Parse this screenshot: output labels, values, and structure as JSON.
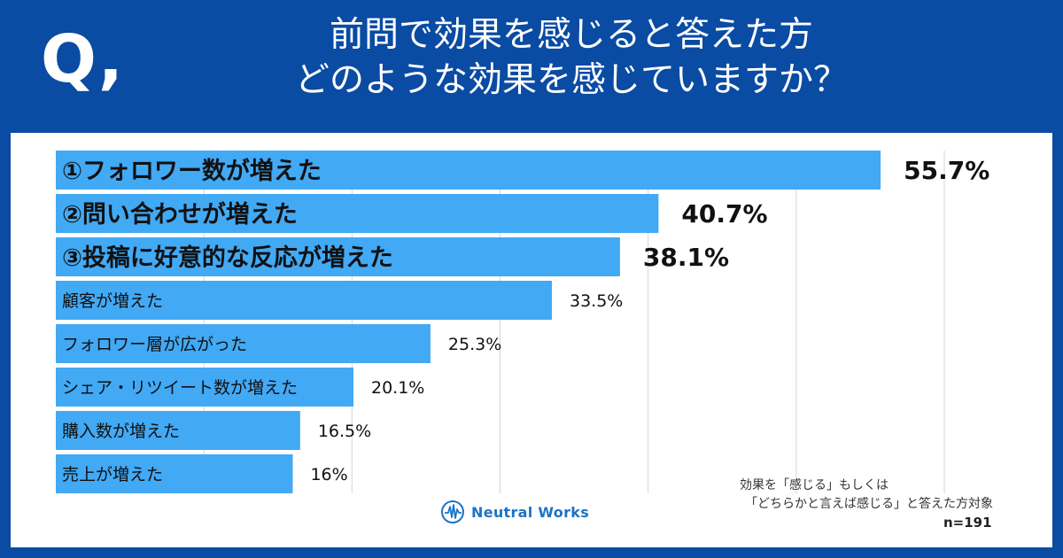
{
  "header": {
    "q_mark": "Q,",
    "title_line1": "前問で効果を感じると答えた方",
    "title_line2": "どのような効果を感じていますか？"
  },
  "chart_data": {
    "type": "bar",
    "orientation": "horizontal",
    "categories": [
      "①フォロワー数が増えた",
      "②問い合わせが増えた",
      "③投稿に好意的な反応が増えた",
      "顧客が増えた",
      "フォロワー層が広がった",
      "シェア・リツイート数が増えた",
      "購入数が増えた",
      "売上が増えた"
    ],
    "values": [
      55.7,
      40.7,
      38.1,
      33.5,
      25.3,
      20.1,
      16.5,
      16
    ],
    "value_labels": [
      "55.7%",
      "40.7%",
      "38.1%",
      "33.5%",
      "25.3%",
      "20.1%",
      "16.5%",
      "16%"
    ],
    "highlighted": [
      true,
      true,
      true,
      false,
      false,
      false,
      false,
      false
    ],
    "xlim": [
      0,
      60
    ],
    "grid": true,
    "colors": {
      "bar": "#42a9f5",
      "grid": "#cfd6df",
      "label": "#111111"
    }
  },
  "note": {
    "line1": "効果を「感じる」もしくは",
    "line2": "「どちらかと言えば感じる」と答えた方対象",
    "n": "n=191"
  },
  "logo": {
    "text": "Neutral Works",
    "icon": "neutral-works-logo-icon",
    "color": "#1e73c8"
  },
  "colors": {
    "background": "#0a4ba3",
    "panel": "#ffffff"
  }
}
